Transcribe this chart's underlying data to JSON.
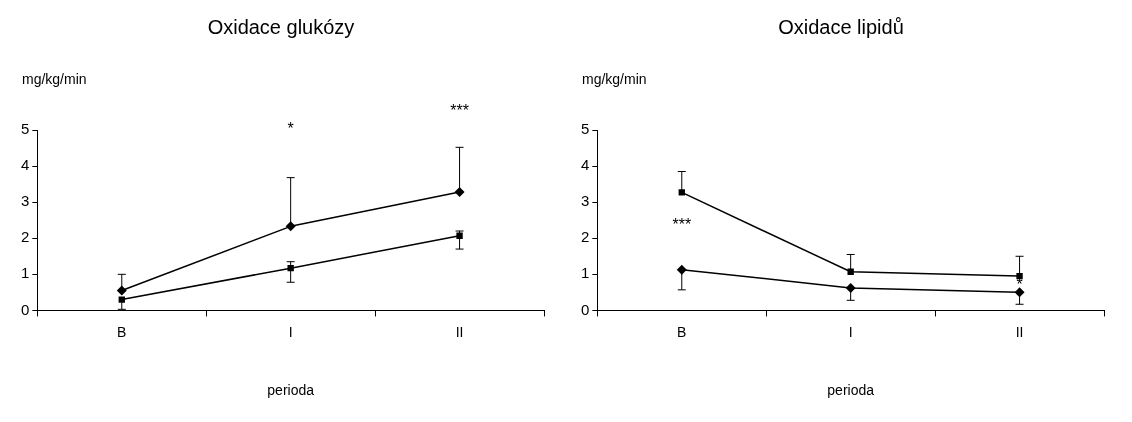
{
  "chart_data": [
    {
      "type": "line",
      "title": "Oxidace glukózy",
      "ylabel": "mg/kg/min",
      "xlabel": "perioda",
      "categories": [
        "B",
        "I",
        "II"
      ],
      "ylim": [
        0,
        5
      ],
      "yticks": [
        0,
        1,
        2,
        3,
        4,
        5
      ],
      "grid": false,
      "legend": false,
      "series": [
        {
          "color": "#000000",
          "marker": "diamond",
          "values": [
            0.55,
            2.33,
            3.28
          ],
          "errors": [
            [
              0.55,
              1.0
            ],
            [
              2.33,
              3.68
            ],
            [
              3.28,
              4.52
            ]
          ]
        },
        {
          "color": "#000000",
          "marker": "square",
          "values": [
            0.3,
            1.17,
            2.07
          ],
          "errors": [
            [
              0.03,
              0.3
            ],
            [
              0.78,
              1.35
            ],
            [
              1.7,
              2.2
            ]
          ]
        }
      ],
      "annotations": [
        "*",
        "***"
      ]
    },
    {
      "type": "line",
      "title": "Oxidace lipidů",
      "ylabel": "mg/kg/min",
      "xlabel": "perioda",
      "categories": [
        "B",
        "I",
        "II"
      ],
      "ylim": [
        0,
        5
      ],
      "yticks": [
        0,
        1,
        2,
        3,
        4,
        5
      ],
      "grid": false,
      "legend": false,
      "series": [
        {
          "color": "#000000",
          "marker": "square",
          "values": [
            3.27,
            1.07,
            0.95
          ],
          "errors": [
            [
              3.27,
              3.85
            ],
            [
              1.07,
              1.55
            ],
            [
              0.95,
              1.5
            ]
          ]
        },
        {
          "color": "#000000",
          "marker": "diamond",
          "values": [
            1.13,
            0.62,
            0.5
          ],
          "errors": [
            [
              0.57,
              1.13
            ],
            [
              0.28,
              0.62
            ],
            [
              0.17,
              0.5
            ]
          ]
        }
      ],
      "annotations": [
        "***",
        {
          "text": "*",
          "x": "II",
          "y": 0.7
        }
      ]
    }
  ]
}
